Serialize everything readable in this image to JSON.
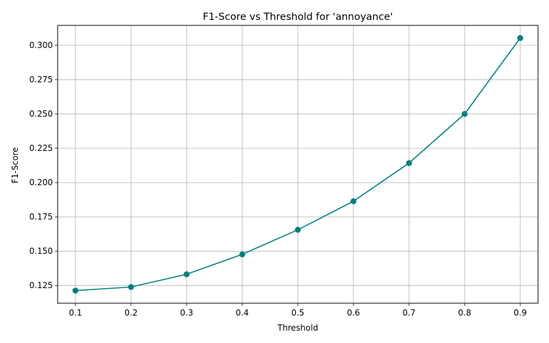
{
  "chart_data": {
    "type": "line",
    "title": "F1-Score vs Threshold for 'annoyance'",
    "xlabel": "Threshold",
    "ylabel": "F1-Score",
    "x": [
      0.1,
      0.2,
      0.3,
      0.4,
      0.5,
      0.6,
      0.7,
      0.8,
      0.9
    ],
    "series": [
      {
        "values": [
          0.1213,
          0.1239,
          0.1332,
          0.1477,
          0.1656,
          0.1864,
          0.2142,
          0.25,
          0.3053
        ]
      }
    ],
    "xlim": [
      0.068,
      0.932
    ],
    "ylim": [
      0.1121,
      0.3145
    ],
    "xticks": [
      "0.1",
      "0.2",
      "0.3",
      "0.4",
      "0.5",
      "0.6",
      "0.7",
      "0.8",
      "0.9"
    ],
    "yticks": [
      "0.125",
      "0.150",
      "0.175",
      "0.200",
      "0.225",
      "0.250",
      "0.275",
      "0.300"
    ],
    "grid": true,
    "marker": "circle",
    "color": "#008080"
  }
}
